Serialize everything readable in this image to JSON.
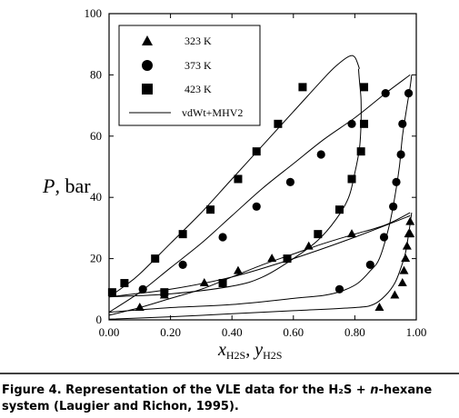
{
  "chart_data": {
    "type": "scatter",
    "xlim": [
      0,
      1
    ],
    "ylim": [
      0,
      100
    ],
    "xticks": [
      "0.00",
      "0.20",
      "0.40",
      "0.60",
      "0.80",
      "1.00"
    ],
    "yticks": [
      "0",
      "20",
      "40",
      "60",
      "80",
      "100"
    ],
    "ylabel_var": "P",
    "ylabel_unit": ", bar",
    "xlabel_x": "x",
    "xlabel_y": "y",
    "xlabel_sub": "H2S",
    "legend_position": "top-left",
    "series": [
      {
        "name": "323 K",
        "marker": "triangle",
        "x": [
          0.1,
          0.18,
          0.31,
          0.42,
          0.53,
          0.65,
          0.79,
          0.88,
          0.93,
          0.955,
          0.96,
          0.965,
          0.97,
          0.975,
          0.98,
          0.98
        ],
        "y": [
          4,
          8,
          12,
          16,
          20,
          24,
          28,
          4,
          8,
          12,
          16,
          20,
          24,
          28,
          32,
          28
        ]
      },
      {
        "name": "373 K",
        "marker": "circle",
        "x": [
          0.11,
          0.24,
          0.37,
          0.48,
          0.59,
          0.69,
          0.79,
          0.9,
          0.75,
          0.85,
          0.895,
          0.925,
          0.935,
          0.95,
          0.955,
          0.975
        ],
        "y": [
          10,
          18,
          27,
          37,
          45,
          54,
          64,
          74,
          10,
          18,
          27,
          37,
          45,
          54,
          64,
          74
        ]
      },
      {
        "name": "423 K",
        "marker": "square",
        "x": [
          0.01,
          0.05,
          0.15,
          0.24,
          0.33,
          0.42,
          0.48,
          0.55,
          0.63,
          0.18,
          0.37,
          0.58,
          0.68,
          0.75,
          0.79,
          0.82,
          0.83,
          0.83
        ],
        "y": [
          9,
          12,
          20,
          28,
          36,
          46,
          55,
          64,
          76,
          9,
          12,
          20,
          28,
          36,
          46,
          55,
          64,
          76
        ]
      }
    ],
    "model": {
      "name": "vdWt+MHV2",
      "curves": [
        {
          "x": [
            0.0,
            0.1,
            0.2,
            0.3,
            0.4,
            0.5,
            0.6,
            0.7,
            0.8,
            0.9,
            0.98
          ],
          "y": [
            1.5,
            4,
            7,
            10,
            14,
            18,
            21.5,
            25,
            28,
            31,
            35
          ]
        },
        {
          "x": [
            0.0,
            0.2,
            0.4,
            0.6,
            0.8,
            0.86,
            0.9,
            0.93,
            0.95,
            0.965,
            0.975,
            0.985
          ],
          "y": [
            0.2,
            1,
            2,
            3,
            4,
            5,
            8,
            12,
            17,
            22,
            28,
            35
          ]
        },
        {
          "x": [
            0.0,
            0.1,
            0.2,
            0.3,
            0.4,
            0.5,
            0.6,
            0.7,
            0.8,
            0.9,
            0.98
          ],
          "y": [
            2.5,
            9,
            17,
            25,
            34,
            43,
            51,
            59,
            66,
            74,
            80
          ]
        },
        {
          "x": [
            0.0,
            0.2,
            0.4,
            0.6,
            0.7,
            0.76,
            0.81,
            0.85,
            0.88,
            0.91,
            0.93,
            0.945,
            0.955,
            0.97,
            0.98,
            0.985
          ],
          "y": [
            2.5,
            4,
            5,
            7,
            8,
            9.5,
            12,
            16,
            20,
            30,
            40,
            50,
            60,
            70,
            76,
            80
          ]
        },
        {
          "x": [
            0.0,
            0.05,
            0.1,
            0.2,
            0.3,
            0.4,
            0.5,
            0.6,
            0.7,
            0.74,
            0.78,
            0.8,
            0.815
          ],
          "y": [
            7.5,
            11,
            15,
            25,
            35,
            46,
            57,
            68,
            79,
            83,
            86,
            85.8,
            82
          ]
        },
        {
          "x": [
            0.0,
            0.2,
            0.4,
            0.5,
            0.6,
            0.68,
            0.74,
            0.78,
            0.8,
            0.815,
            0.82,
            0.82,
            0.815,
            0.812
          ],
          "y": [
            7.5,
            8.5,
            11,
            14,
            20,
            26,
            33,
            40,
            48,
            56,
            64,
            72,
            78,
            82
          ]
        },
        {
          "x": [
            0.0,
            0.2,
            0.4,
            0.6,
            0.8,
            0.98
          ],
          "y": [
            7.5,
            10,
            14,
            20,
            27,
            34
          ]
        }
      ]
    }
  },
  "figure_caption": {
    "label": "Figure 4.",
    "line1": "Representation of the VLE data for the H₂S + ",
    "italic": "n",
    "line1_end": "-hexane",
    "line2": "system (Laugier and Richon, 1995)."
  }
}
